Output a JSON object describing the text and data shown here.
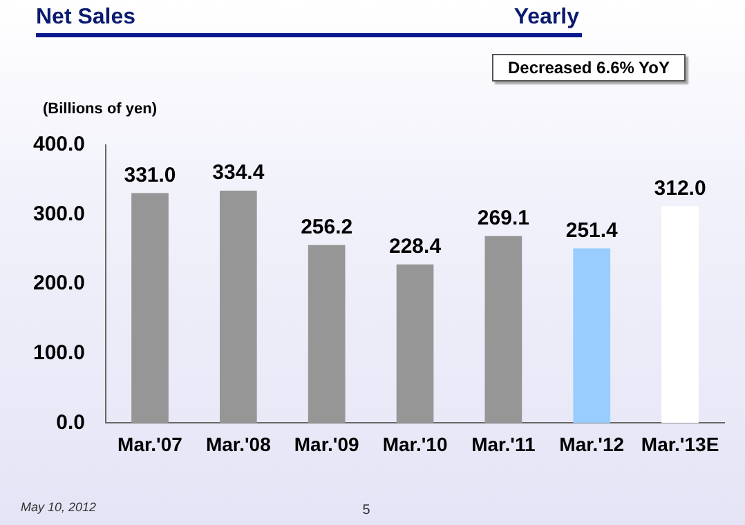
{
  "chart_data": {
    "type": "bar",
    "title": "Net Sales",
    "subtitle": "Yearly",
    "ylabel": "(Billions of yen)",
    "annotations": [
      "Decreased 6.6% YoY",
      "May 10, 2012",
      "5"
    ],
    "categories": [
      "Mar.'07",
      "Mar.'08",
      "Mar.'09",
      "Mar.'10",
      "Mar.'11",
      "Mar.'12",
      "Mar.'13E"
    ],
    "values": [
      331.0,
      334.4,
      256.2,
      228.4,
      269.1,
      251.4,
      312.0
    ],
    "value_labels": [
      "331.0",
      "334.4",
      "256.2",
      "228.4",
      "269.1",
      "251.4",
      "312.0"
    ],
    "colors": [
      "#969696",
      "#969696",
      "#969696",
      "#969696",
      "#969696",
      "#99ccff",
      "#ffffff"
    ],
    "ylim": [
      0,
      400
    ],
    "yticks": [
      {
        "value": 0,
        "label": "0.0"
      },
      {
        "value": 100,
        "label": "100.0"
      },
      {
        "value": 200,
        "label": "200.0"
      },
      {
        "value": 300,
        "label": "300.0"
      },
      {
        "value": 400,
        "label": "400.0"
      }
    ],
    "grid": false,
    "legend": false
  }
}
